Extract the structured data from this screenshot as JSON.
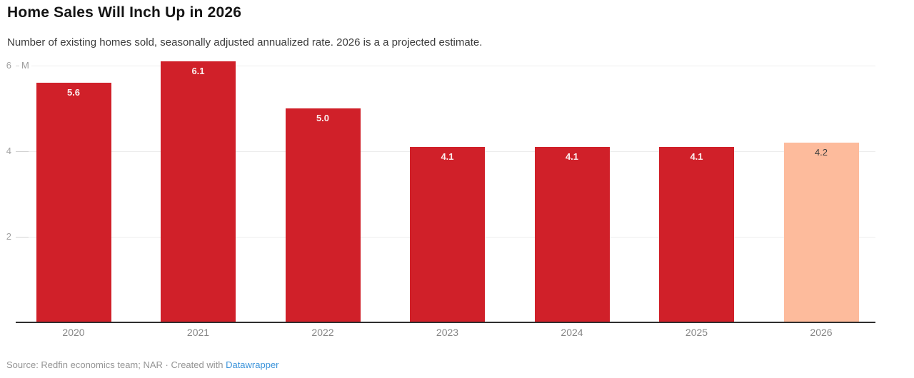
{
  "header": {
    "title": "Home Sales Will Inch Up in 2026",
    "subtitle": "Number of existing homes sold, seasonally adjusted annualized rate. 2026 is a a projected estimate."
  },
  "chart_data": {
    "type": "bar",
    "title": "Home Sales Will Inch Up in 2026",
    "subtitle": "Number of existing homes sold, seasonally adjusted annualized rate. 2026 is a a projected estimate.",
    "categories": [
      "2020",
      "2021",
      "2022",
      "2023",
      "2024",
      "2025",
      "2026"
    ],
    "values": [
      5.6,
      6.1,
      5.0,
      4.1,
      4.1,
      4.1,
      4.2
    ],
    "bar_labels": [
      "5.6",
      "6.1",
      "5.0",
      "4.1",
      "4.1",
      "4.1",
      "4.2"
    ],
    "unit_label": "M",
    "y_ticks": [
      6,
      4,
      2
    ],
    "ylim": [
      0,
      6.2
    ],
    "grid": true,
    "legend_position": "none",
    "bar_color": "#d02029",
    "projected_bar_color": "#fdbb9c",
    "projected_index": 6,
    "label_color_on_bar": "#fbeeee",
    "label_color_on_projected": "#3f3f3f"
  },
  "footer": {
    "source_text": "Source: Redfin economics team; NAR · Created with ",
    "link_label": "Datawrapper",
    "link_color": "#3b93da"
  }
}
